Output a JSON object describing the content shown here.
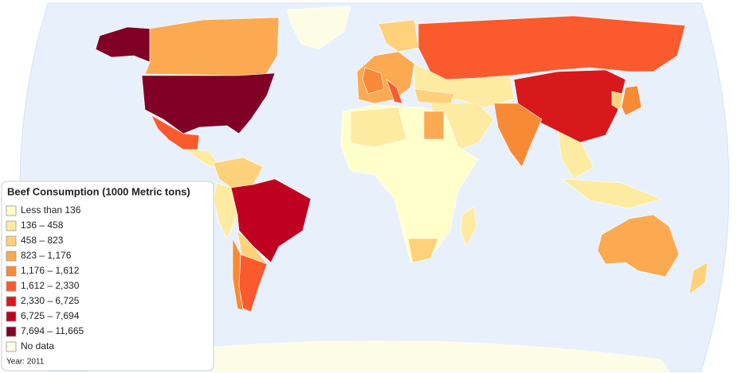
{
  "legend": {
    "title": "Beef Consumption (1000 Metric tons)",
    "items": [
      {
        "label": "Less than 136",
        "color": "#ffffcc"
      },
      {
        "label": "136 – 458",
        "color": "#feeba2"
      },
      {
        "label": "458 – 823",
        "color": "#fed17a"
      },
      {
        "label": "823 – 1,176",
        "color": "#fbaa52"
      },
      {
        "label": "1,176 – 1,612",
        "color": "#f98a35"
      },
      {
        "label": "1,612 – 2,330",
        "color": "#fa5a2d"
      },
      {
        "label": "2,330 – 6,725",
        "color": "#d7191c"
      },
      {
        "label": "6,725 – 7,694",
        "color": "#c00021"
      },
      {
        "label": "7,694 – 11,665",
        "color": "#800026"
      },
      {
        "label": "No data",
        "color": "#fdfde6"
      }
    ]
  },
  "note": "Year: 2011"
}
